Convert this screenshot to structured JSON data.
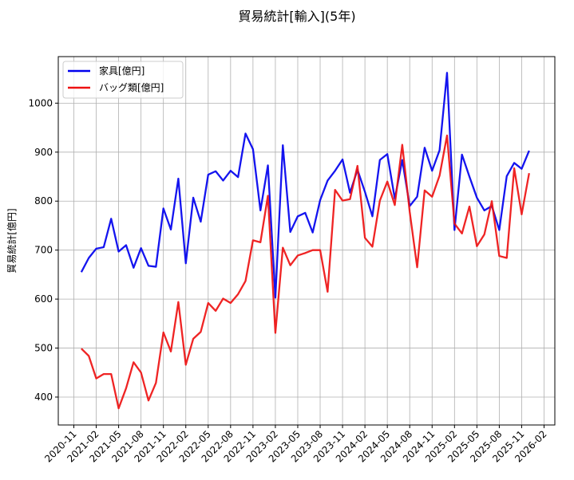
{
  "chart_data": {
    "type": "line",
    "title": "貿易統計[輸入](5年)",
    "xlabel": "",
    "ylabel": "貿易統計[億円]",
    "ylim": [
      343,
      1095
    ],
    "yticks": [
      400,
      500,
      600,
      700,
      800,
      900,
      1000
    ],
    "xticks": [
      "2020-11",
      "2021-02",
      "2021-05",
      "2021-08",
      "2021-11",
      "2022-02",
      "2022-05",
      "2022-08",
      "2022-11",
      "2023-02",
      "2023-05",
      "2023-08",
      "2023-11",
      "2024-02",
      "2024-05",
      "2024-08",
      "2024-11",
      "2025-02",
      "2025-05",
      "2025-08",
      "2025-11",
      "2026-02"
    ],
    "grid": true,
    "legend_position": "top-left",
    "x": [
      "2020-12",
      "2021-01",
      "2021-02",
      "2021-03",
      "2021-04",
      "2021-05",
      "2021-06",
      "2021-07",
      "2021-08",
      "2021-09",
      "2021-10",
      "2021-11",
      "2021-12",
      "2022-01",
      "2022-02",
      "2022-03",
      "2022-04",
      "2022-05",
      "2022-06",
      "2022-07",
      "2022-08",
      "2022-09",
      "2022-10",
      "2022-11",
      "2022-12",
      "2023-01",
      "2023-02",
      "2023-03",
      "2023-04",
      "2023-05",
      "2023-06",
      "2023-07",
      "2023-08",
      "2023-09",
      "2023-10",
      "2023-11",
      "2023-12",
      "2024-01",
      "2024-02",
      "2024-03",
      "2024-04",
      "2024-05",
      "2024-06",
      "2024-07",
      "2024-08",
      "2024-09",
      "2024-10",
      "2024-11",
      "2024-12",
      "2025-01",
      "2025-02",
      "2025-03",
      "2025-04",
      "2025-05",
      "2025-06",
      "2025-07",
      "2025-08",
      "2025-09",
      "2025-10",
      "2025-11",
      "2025-12",
      "2026-01",
      "2026-02"
    ],
    "series": [
      {
        "name": "家具[億円]",
        "color": "#0000ee",
        "values": [
          655,
          684,
          703,
          706,
          764,
          697,
          710,
          664,
          704,
          668,
          666,
          785,
          742,
          846,
          673,
          807,
          758,
          854,
          861,
          842,
          862,
          849,
          938,
          906,
          781,
          873,
          603,
          914,
          737,
          769,
          776,
          736,
          802,
          842,
          862,
          885,
          817,
          864,
          819,
          769,
          884,
          896,
          805,
          884,
          790,
          809,
          909,
          862,
          904,
          1062,
          741,
          895,
          850,
          807,
          781,
          790,
          741,
          851,
          878,
          866,
          903,
          null,
          null
        ]
      },
      {
        "name": "バッグ類[億円]",
        "color": "#ee1111",
        "values": [
          499,
          484,
          438,
          447,
          447,
          377,
          418,
          471,
          450,
          393,
          429,
          532,
          493,
          594,
          466,
          519,
          533,
          592,
          576,
          601,
          592,
          610,
          637,
          720,
          716,
          811,
          531,
          705,
          669,
          689,
          694,
          700,
          700,
          615,
          823,
          801,
          804,
          872,
          725,
          707,
          801,
          840,
          792,
          915,
          778,
          665,
          822,
          809,
          852,
          934,
          754,
          734,
          789,
          708,
          732,
          800,
          688,
          684,
          867,
          773,
          857,
          null,
          null
        ]
      }
    ]
  }
}
